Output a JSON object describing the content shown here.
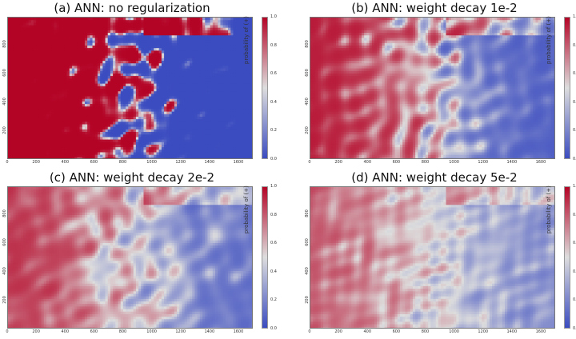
{
  "colors": {
    "red": "#b40426",
    "blue": "#3b4cc0",
    "mid": "#dddddd"
  },
  "colorbar": {
    "label": "probability of (+)",
    "ticks": [
      "1.0",
      "0.8",
      "0.6",
      "0.4",
      "0.2",
      "0.0"
    ]
  },
  "xticks": [
    "0",
    "200",
    "400",
    "600",
    "800",
    "1000",
    "1200",
    "1400",
    "1600"
  ],
  "yticks": [
    "800",
    "600",
    "400",
    "200"
  ],
  "panels": [
    {
      "title": "(a) ANN: no regularization"
    },
    {
      "title": "(b) ANN: weight decay 1e-2"
    },
    {
      "title": "(c) ANN: weight decay 2e-2"
    },
    {
      "title": "(d) ANN: weight decay 5e-2"
    }
  ],
  "chart_data": [
    {
      "type": "heatmap",
      "title": "(a) ANN: no regularization",
      "xlim": [
        0,
        1700
      ],
      "ylim": [
        0,
        1000
      ],
      "colorbar_label": "probability of (+)",
      "zlim": [
        0.0,
        1.0
      ],
      "colormap": "coolwarm",
      "smoothing": 0.0
    },
    {
      "type": "heatmap",
      "title": "(b) ANN: weight decay 1e-2",
      "xlim": [
        0,
        1700
      ],
      "ylim": [
        0,
        1000
      ],
      "colorbar_label": "probability of (+)",
      "zlim": [
        0.0,
        1.0
      ],
      "colormap": "coolwarm",
      "smoothing": 0.3
    },
    {
      "type": "heatmap",
      "title": "(c) ANN: weight decay 2e-2",
      "xlim": [
        0,
        1700
      ],
      "ylim": [
        0,
        1000
      ],
      "colorbar_label": "probability of (+)",
      "zlim": [
        0.0,
        1.0
      ],
      "colormap": "coolwarm",
      "smoothing": 0.5
    },
    {
      "type": "heatmap",
      "title": "(d) ANN: weight decay 5e-2",
      "xlim": [
        0,
        1700
      ],
      "ylim": [
        0,
        1000
      ],
      "colorbar_label": "probability of (+)",
      "zlim": [
        0.0,
        1.0
      ],
      "colormap": "coolwarm",
      "smoothing": 0.8
    }
  ]
}
